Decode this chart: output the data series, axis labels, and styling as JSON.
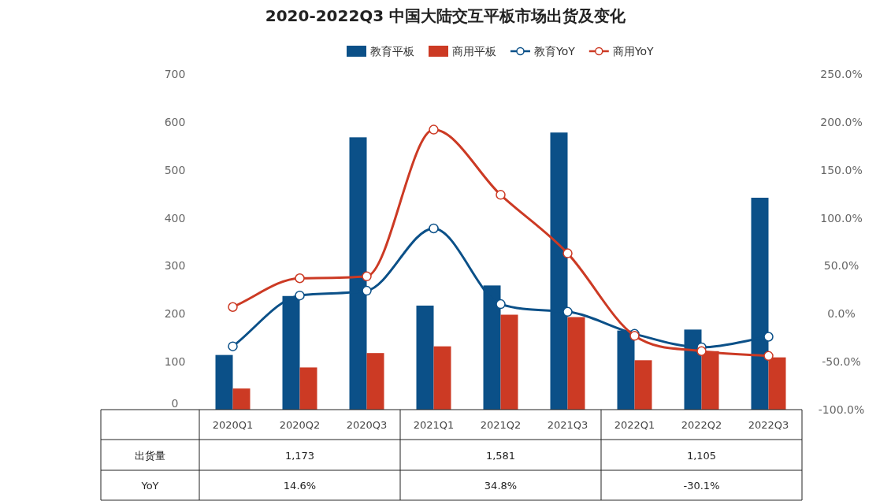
{
  "chart_data": {
    "type": "bar",
    "title": "2020-2022Q3 中国大陆交互平板市场出货及变化",
    "categories": [
      "2020Q1",
      "2020Q2",
      "2020Q3",
      "2021Q1",
      "2021Q2",
      "2021Q3",
      "2022Q1",
      "2022Q2",
      "2022Q3"
    ],
    "series": [
      {
        "name": "教育平板",
        "color": "#0b5088",
        "values": [
          114,
          237,
          568,
          217,
          259,
          578,
          165,
          167,
          442
        ]
      },
      {
        "name": "商用平板",
        "color": "#cc3a24",
        "values": [
          44,
          88,
          118,
          132,
          198,
          193,
          103,
          122,
          109
        ]
      },
      {
        "name": "教育YoY",
        "type": "line",
        "axis": "y2",
        "color": "#0b5088",
        "values": [
          -34,
          19,
          24,
          89,
          10,
          2,
          -21,
          -35,
          -24
        ]
      },
      {
        "name": "商用YoY",
        "type": "line",
        "axis": "y2",
        "color": "#cc3a24",
        "values": [
          7,
          37,
          39,
          192,
          124,
          63,
          -23,
          -39,
          -44
        ]
      }
    ],
    "ylim": [
      0,
      700
    ],
    "yticks": [
      0,
      100,
      200,
      300,
      400,
      500,
      600,
      700
    ],
    "y2lim": [
      -100,
      250
    ],
    "y2ticks": [
      {
        "value": -100,
        "label": "-100.0%"
      },
      {
        "value": -50,
        "label": "-50.0%"
      },
      {
        "value": 0,
        "label": "0.0%"
      },
      {
        "value": 50,
        "label": "50.0%"
      },
      {
        "value": 100,
        "label": "100.0%"
      },
      {
        "value": 150,
        "label": "150.0%"
      },
      {
        "value": 200,
        "label": "200.0%"
      },
      {
        "value": 250,
        "label": "250.0%"
      }
    ],
    "annotations": [
      "出货量",
      "1,173",
      "1,581",
      "1,105",
      "YoY",
      "14.6%",
      "34.8%",
      "-30.1%"
    ],
    "legend": "top",
    "grid": false,
    "marker": "circle"
  }
}
